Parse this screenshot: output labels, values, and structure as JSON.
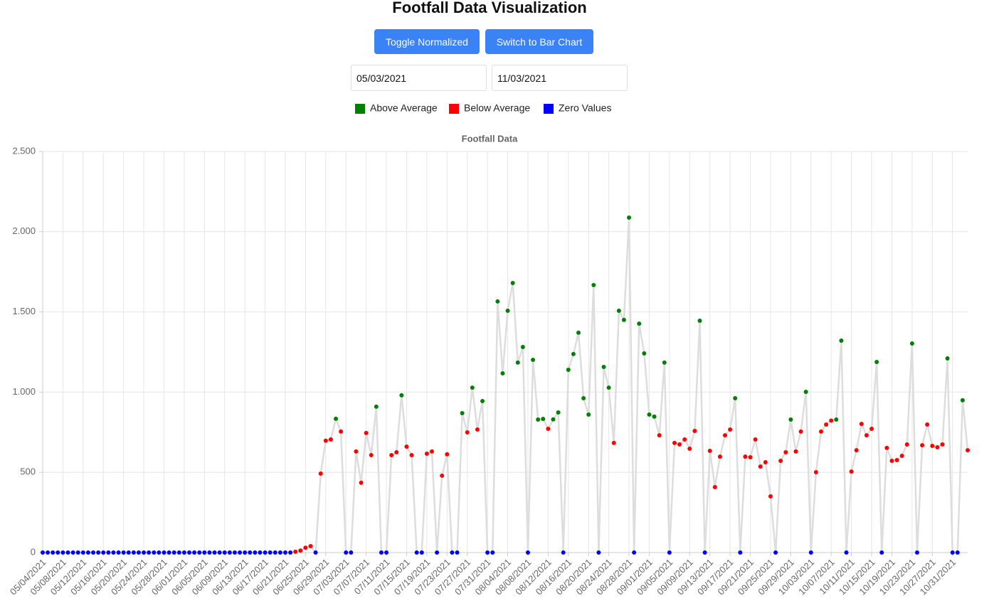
{
  "header": {
    "title": "Footfall Data Visualization",
    "buttons": [
      "Toggle Normalized",
      "Switch to Bar Chart"
    ],
    "date_inputs": [
      "05/03/2021",
      "11/03/2021"
    ]
  },
  "chart_data": {
    "type": "line",
    "title": "Footfall Data",
    "legend": [
      {
        "name": "Above Average",
        "color": "green"
      },
      {
        "name": "Below Average",
        "color": "red"
      },
      {
        "name": "Zero Values",
        "color": "blue"
      }
    ],
    "line_color": "#dddddd",
    "grid": true,
    "ylim": [
      0,
      2500
    ],
    "yticks": [
      0,
      500,
      {
        "value": 1000,
        "label": "1.000"
      },
      {
        "value": 1500,
        "label": "1.500"
      },
      {
        "value": 2000,
        "label": "2.000"
      },
      {
        "value": 2500,
        "label": "2.500"
      }
    ],
    "categories": [
      "05/04/2021",
      null,
      null,
      null,
      "05/08/2021",
      null,
      null,
      null,
      "05/12/2021",
      null,
      null,
      null,
      "05/16/2021",
      null,
      null,
      null,
      "05/20/2021",
      null,
      null,
      null,
      "05/24/2021",
      null,
      null,
      null,
      "05/28/2021",
      null,
      null,
      null,
      "06/01/2021",
      null,
      null,
      null,
      "06/05/2021",
      null,
      null,
      null,
      "06/09/2021",
      null,
      null,
      null,
      "06/13/2021",
      null,
      null,
      null,
      "06/17/2021",
      null,
      null,
      null,
      "06/21/2021",
      null,
      null,
      null,
      "06/25/2021",
      null,
      null,
      null,
      "06/29/2021",
      null,
      null,
      null,
      "07/03/2021",
      null,
      null,
      null,
      "07/07/2021",
      null,
      null,
      null,
      "07/11/2021",
      null,
      null,
      null,
      "07/15/2021",
      null,
      null,
      null,
      "07/19/2021",
      null,
      null,
      null,
      "07/23/2021",
      null,
      null,
      null,
      "07/27/2021",
      null,
      null,
      null,
      "07/31/2021",
      null,
      null,
      null,
      "08/04/2021",
      null,
      null,
      null,
      "08/08/2021",
      null,
      null,
      null,
      "08/12/2021",
      null,
      null,
      null,
      "08/16/2021",
      null,
      null,
      null,
      "08/20/2021",
      null,
      null,
      null,
      "08/24/2021",
      null,
      null,
      null,
      "08/28/2021",
      null,
      null,
      null,
      "09/01/2021",
      null,
      null,
      null,
      "09/05/2021",
      null,
      null,
      null,
      "09/09/2021",
      null,
      null,
      null,
      "09/13/2021",
      null,
      null,
      null,
      "09/17/2021",
      null,
      null,
      null,
      "09/21/2021",
      null,
      null,
      null,
      "09/25/2021",
      null,
      null,
      null,
      "09/29/2021",
      null,
      null,
      null,
      "10/03/2021",
      null,
      null,
      null,
      "10/07/2021",
      null,
      null,
      null,
      "10/11/2021",
      null,
      null,
      null,
      "10/15/2021",
      null,
      null,
      null,
      "10/19/2021",
      null,
      null,
      null,
      "10/23/2021",
      null,
      null,
      null,
      "10/27/2021",
      null,
      null,
      null,
      "10/31/2021",
      null,
      null,
      null
    ],
    "values": [
      0,
      0,
      0,
      0,
      0,
      0,
      0,
      0,
      0,
      0,
      0,
      0,
      0,
      0,
      0,
      0,
      0,
      0,
      0,
      0,
      0,
      0,
      0,
      0,
      0,
      0,
      0,
      0,
      0,
      0,
      0,
      0,
      0,
      0,
      0,
      0,
      0,
      0,
      0,
      0,
      0,
      0,
      0,
      0,
      0,
      0,
      0,
      0,
      0,
      0,
      5,
      12,
      30,
      40,
      0,
      492,
      697,
      705,
      834,
      754,
      0,
      0,
      630,
      435,
      745,
      607,
      909,
      0,
      0,
      607,
      625,
      980,
      660,
      607,
      0,
      0,
      616,
      630,
      0,
      479,
      612,
      0,
      0,
      869,
      749,
      1028,
      767,
      944,
      0,
      0,
      1565,
      1117,
      1507,
      1680,
      1184,
      1281,
      0,
      1201,
      829,
      833,
      771,
      830,
      873,
      0,
      1139,
      1237,
      1370,
      962,
      860,
      1667,
      0,
      1157,
      1028,
      683,
      1507,
      1450,
      2088,
      0,
      1427,
      1241,
      860,
      847,
      731,
      1184,
      0,
      683,
      674,
      705,
      647,
      758,
      1445,
      0,
      634,
      408,
      598,
      731,
      767,
      962,
      0,
      598,
      594,
      705,
      536,
      563,
      350,
      0,
      572,
      625,
      829,
      630,
      754,
      1002,
      0,
      501,
      754,
      798,
      822,
      829,
      1321,
      0,
      505,
      638,
      802,
      731,
      771,
      1188,
      0,
      652,
      572,
      576,
      603,
      674,
      1303,
      0,
      669,
      798,
      665,
      656,
      674,
      1210,
      0,
      0,
      949,
      638
    ],
    "point_colors": [
      "blue",
      "blue",
      "blue",
      "blue",
      "blue",
      "blue",
      "blue",
      "blue",
      "blue",
      "blue",
      "blue",
      "blue",
      "blue",
      "blue",
      "blue",
      "blue",
      "blue",
      "blue",
      "blue",
      "blue",
      "blue",
      "blue",
      "blue",
      "blue",
      "blue",
      "blue",
      "blue",
      "blue",
      "blue",
      "blue",
      "blue",
      "blue",
      "blue",
      "blue",
      "blue",
      "blue",
      "blue",
      "blue",
      "blue",
      "blue",
      "blue",
      "blue",
      "blue",
      "blue",
      "blue",
      "blue",
      "blue",
      "blue",
      "blue",
      "blue",
      "red",
      "red",
      "red",
      "red",
      "blue",
      "red",
      "red",
      "red",
      "green",
      "red",
      "blue",
      "blue",
      "red",
      "red",
      "red",
      "red",
      "green",
      "blue",
      "blue",
      "red",
      "red",
      "green",
      "red",
      "red",
      "blue",
      "blue",
      "red",
      "red",
      "blue",
      "red",
      "red",
      "blue",
      "blue",
      "green",
      "red",
      "green",
      "red",
      "green",
      "blue",
      "blue",
      "green",
      "green",
      "green",
      "green",
      "green",
      "green",
      "blue",
      "green",
      "green",
      "green",
      "red",
      "green",
      "green",
      "blue",
      "green",
      "green",
      "green",
      "green",
      "green",
      "green",
      "blue",
      "green",
      "green",
      "red",
      "green",
      "green",
      "green",
      "blue",
      "green",
      "green",
      "green",
      "green",
      "red",
      "green",
      "blue",
      "red",
      "red",
      "red",
      "red",
      "red",
      "green",
      "blue",
      "red",
      "red",
      "red",
      "red",
      "red",
      "green",
      "blue",
      "red",
      "red",
      "red",
      "red",
      "red",
      "red",
      "blue",
      "red",
      "red",
      "green",
      "red",
      "red",
      "green",
      "blue",
      "red",
      "red",
      "red",
      "red",
      "green",
      "green",
      "blue",
      "red",
      "red",
      "red",
      "red",
      "red",
      "green",
      "blue",
      "red",
      "red",
      "red",
      "red",
      "red",
      "green",
      "blue",
      "red",
      "red",
      "red",
      "red",
      "red",
      "green",
      "blue",
      "blue",
      "green",
      "red"
    ]
  }
}
